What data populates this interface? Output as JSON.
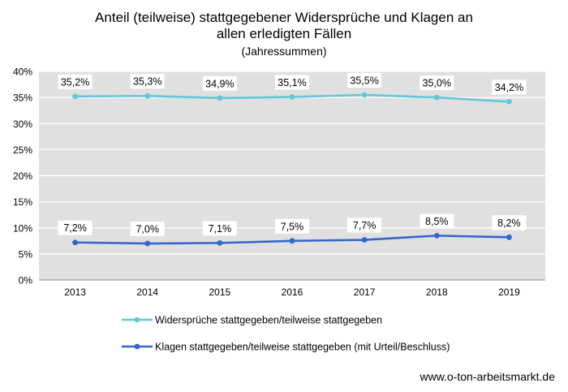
{
  "chart_data": {
    "type": "line",
    "title": "Anteil (teilweise) stattgegebener Widersprüche und Klagen an allen erledigten Fällen",
    "title_lines": [
      "Anteil (teilweise) stattgegebener Widersprüche und Klagen an",
      "allen erledigten Fällen"
    ],
    "subtitle": "(Jahressummen)",
    "categories": [
      "2013",
      "2014",
      "2015",
      "2016",
      "2017",
      "2018",
      "2019"
    ],
    "ylim": [
      0,
      40
    ],
    "yticks": [
      "0%",
      "5%",
      "10%",
      "15%",
      "20%",
      "25%",
      "30%",
      "35%",
      "40%"
    ],
    "grid": true,
    "legend_position": "bottom-left",
    "series": [
      {
        "name": "Widersprüche stattgegeben/teilweise stattgegeben",
        "values": [
          35.2,
          35.3,
          34.9,
          35.1,
          35.5,
          35.0,
          34.2
        ],
        "labels": [
          "35,2%",
          "35,3%",
          "34,9%",
          "35,1%",
          "35,5%",
          "35,0%",
          "34,2%"
        ],
        "color": "#63c8d6"
      },
      {
        "name": "Klagen stattgegeben/teilweise stattgegeben (mit Urteil/Beschluss)",
        "values": [
          7.2,
          7.0,
          7.1,
          7.5,
          7.7,
          8.5,
          8.2
        ],
        "labels": [
          "7,2%",
          "7,0%",
          "7,1%",
          "7,5%",
          "7,7%",
          "8,5%",
          "8,2%"
        ],
        "color": "#3366cc"
      }
    ],
    "plot_background": "#e0e0e0",
    "grid_color": "#ffffff"
  },
  "source": "www.o-ton-arbeitsmarkt.de"
}
